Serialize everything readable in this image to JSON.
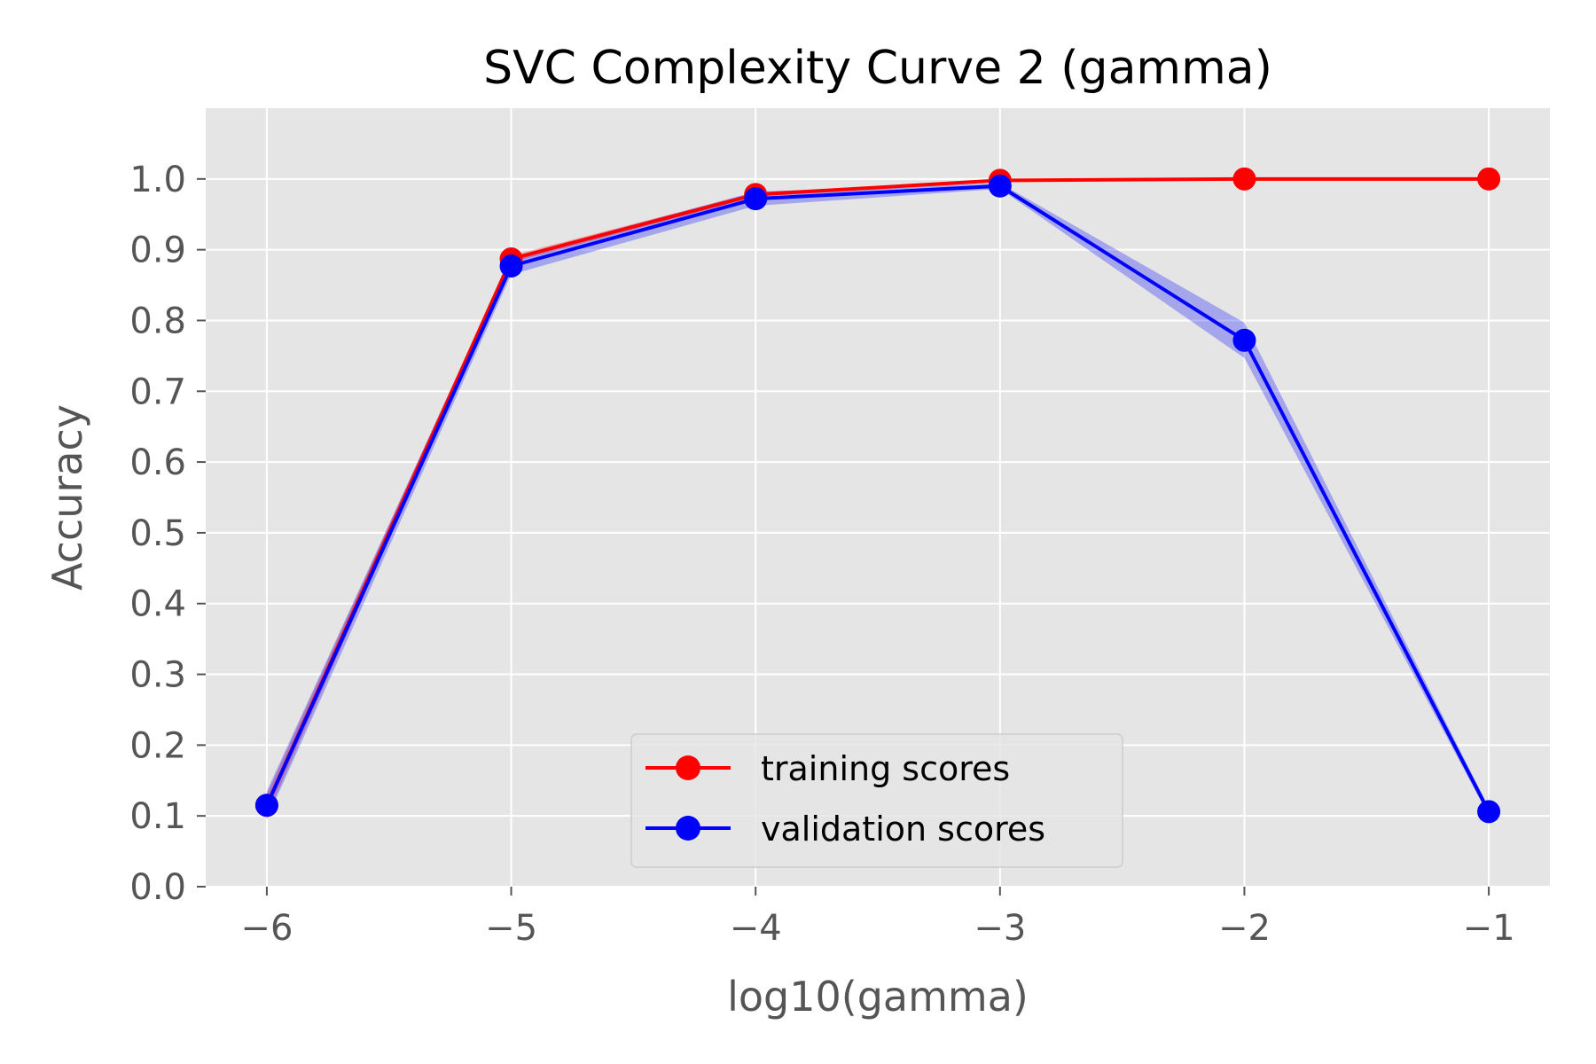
{
  "chart_data": {
    "type": "line",
    "title": "SVC Complexity Curve 2 (gamma)",
    "xlabel": "log10(gamma)",
    "ylabel": "Accuracy",
    "x": [
      -6,
      -5,
      -4,
      -3,
      -2,
      -1
    ],
    "xlim": [
      -6.25,
      -0.75
    ],
    "ylim": [
      0.0,
      1.1
    ],
    "xticks": [
      -6,
      -5,
      -4,
      -3,
      -2,
      -1
    ],
    "xtick_labels": [
      "−6",
      "−5",
      "−4",
      "−3",
      "−2",
      "−1"
    ],
    "yticks": [
      0.0,
      0.1,
      0.2,
      0.3,
      0.4,
      0.5,
      0.6,
      0.7,
      0.8,
      0.9,
      1.0
    ],
    "ytick_labels": [
      "0.0",
      "0.1",
      "0.2",
      "0.3",
      "0.4",
      "0.5",
      "0.6",
      "0.7",
      "0.8",
      "0.9",
      "1.0"
    ],
    "grid": true,
    "legend_position": "lower-center",
    "series": [
      {
        "name": "training scores",
        "color": "#ff0000",
        "values": [
          0.115,
          0.887,
          0.978,
          0.998,
          1.0,
          1.0
        ],
        "std": [
          0.015,
          0.005,
          0.003,
          0.001,
          0.0,
          0.0
        ]
      },
      {
        "name": "validation scores",
        "color": "#0000ff",
        "values": [
          0.115,
          0.877,
          0.972,
          0.99,
          0.772,
          0.106
        ],
        "std": [
          0.02,
          0.012,
          0.01,
          0.004,
          0.025,
          0.006
        ]
      }
    ],
    "colors": {
      "plot_background": "#e5e5e5",
      "grid": "#ffffff"
    }
  }
}
